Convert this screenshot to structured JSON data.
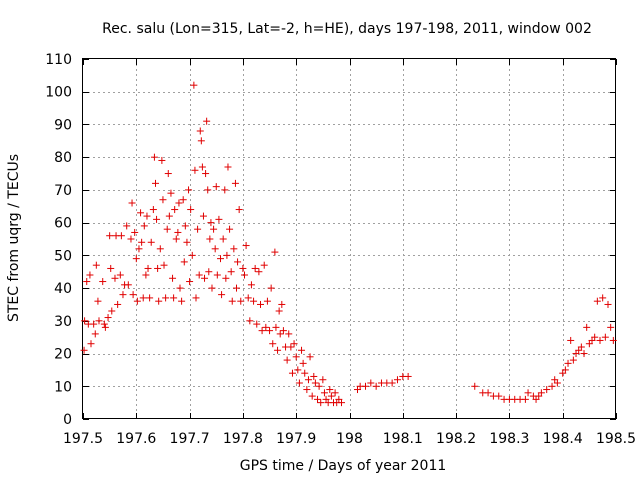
{
  "chart_data": {
    "type": "scatter",
    "title": "Rec. salu (Lon=315, Lat=-2, h=HE), days 197-198, 2011, window 002",
    "xlabel": "GPS time / Days of year 2011",
    "ylabel": "STEC from uqrg / TECUs",
    "xlim": [
      197.5,
      198.5
    ],
    "ylim": [
      0,
      110
    ],
    "xticks": [
      197.5,
      197.6,
      197.7,
      197.8,
      197.9,
      198.0,
      198.1,
      198.2,
      198.3,
      198.4,
      198.5
    ],
    "xtick_labels": [
      "197.5",
      "197.6",
      "197.7",
      "197.8",
      "197.9",
      "198",
      "198.1",
      "198.2",
      "198.3",
      "198.4",
      "198.5"
    ],
    "yticks": [
      0,
      10,
      20,
      30,
      40,
      50,
      60,
      70,
      80,
      90,
      100,
      110
    ],
    "ytick_labels": [
      "0",
      "10",
      "20",
      "30",
      "40",
      "50",
      "60",
      "70",
      "80",
      "90",
      "100",
      "110"
    ],
    "grid": true,
    "marker": "+",
    "marker_color": "#e00000",
    "series": [
      {
        "name": "STEC",
        "points": [
          [
            197.502,
            21
          ],
          [
            197.503,
            30
          ],
          [
            197.507,
            42
          ],
          [
            197.51,
            29
          ],
          [
            197.513,
            44
          ],
          [
            197.515,
            23
          ],
          [
            197.52,
            29
          ],
          [
            197.523,
            26
          ],
          [
            197.525,
            47
          ],
          [
            197.528,
            36
          ],
          [
            197.53,
            30
          ],
          [
            197.537,
            42
          ],
          [
            197.54,
            29
          ],
          [
            197.542,
            28
          ],
          [
            197.547,
            31
          ],
          [
            197.55,
            56
          ],
          [
            197.552,
            46
          ],
          [
            197.554,
            33
          ],
          [
            197.56,
            43
          ],
          [
            197.562,
            56
          ],
          [
            197.565,
            35
          ],
          [
            197.57,
            44
          ],
          [
            197.572,
            56
          ],
          [
            197.575,
            38
          ],
          [
            197.578,
            41
          ],
          [
            197.582,
            59
          ],
          [
            197.585,
            41
          ],
          [
            197.59,
            55
          ],
          [
            197.592,
            66
          ],
          [
            197.594,
            38
          ],
          [
            197.597,
            57
          ],
          [
            197.6,
            49
          ],
          [
            197.602,
            36
          ],
          [
            197.605,
            52
          ],
          [
            197.608,
            63
          ],
          [
            197.61,
            54
          ],
          [
            197.613,
            37
          ],
          [
            197.615,
            59
          ],
          [
            197.618,
            44
          ],
          [
            197.62,
            62
          ],
          [
            197.622,
            46
          ],
          [
            197.625,
            37
          ],
          [
            197.628,
            54
          ],
          [
            197.632,
            64
          ],
          [
            197.634,
            80
          ],
          [
            197.636,
            72
          ],
          [
            197.638,
            61
          ],
          [
            197.64,
            46
          ],
          [
            197.642,
            36
          ],
          [
            197.645,
            52
          ],
          [
            197.648,
            79
          ],
          [
            197.65,
            67
          ],
          [
            197.652,
            47
          ],
          [
            197.655,
            37
          ],
          [
            197.658,
            58
          ],
          [
            197.66,
            75
          ],
          [
            197.662,
            62
          ],
          [
            197.665,
            69
          ],
          [
            197.668,
            43
          ],
          [
            197.67,
            37
          ],
          [
            197.672,
            64
          ],
          [
            197.675,
            55
          ],
          [
            197.678,
            57
          ],
          [
            197.68,
            66
          ],
          [
            197.682,
            40
          ],
          [
            197.685,
            36
          ],
          [
            197.688,
            67
          ],
          [
            197.69,
            48
          ],
          [
            197.692,
            59
          ],
          [
            197.695,
            54
          ],
          [
            197.698,
            70
          ],
          [
            197.7,
            42
          ],
          [
            197.702,
            64
          ],
          [
            197.705,
            50
          ],
          [
            197.708,
            102
          ],
          [
            197.71,
            76
          ],
          [
            197.712,
            37
          ],
          [
            197.715,
            58
          ],
          [
            197.718,
            44
          ],
          [
            197.72,
            88
          ],
          [
            197.722,
            85
          ],
          [
            197.724,
            77
          ],
          [
            197.726,
            62
          ],
          [
            197.728,
            43
          ],
          [
            197.73,
            75
          ],
          [
            197.732,
            91
          ],
          [
            197.734,
            70
          ],
          [
            197.736,
            45
          ],
          [
            197.738,
            55
          ],
          [
            197.74,
            60
          ],
          [
            197.742,
            40
          ],
          [
            197.745,
            58
          ],
          [
            197.748,
            52
          ],
          [
            197.75,
            71
          ],
          [
            197.752,
            44
          ],
          [
            197.755,
            61
          ],
          [
            197.758,
            49
          ],
          [
            197.76,
            38
          ],
          [
            197.763,
            55
          ],
          [
            197.766,
            70
          ],
          [
            197.768,
            43
          ],
          [
            197.77,
            50
          ],
          [
            197.772,
            77
          ],
          [
            197.775,
            58
          ],
          [
            197.778,
            45
          ],
          [
            197.78,
            36
          ],
          [
            197.783,
            52
          ],
          [
            197.786,
            72
          ],
          [
            197.788,
            40
          ],
          [
            197.79,
            48
          ],
          [
            197.793,
            64
          ],
          [
            197.796,
            36
          ],
          [
            197.8,
            46
          ],
          [
            197.803,
            44
          ],
          [
            197.806,
            53
          ],
          [
            197.81,
            37
          ],
          [
            197.813,
            30
          ],
          [
            197.816,
            41
          ],
          [
            197.82,
            36
          ],
          [
            197.823,
            46
          ],
          [
            197.826,
            29
          ],
          [
            197.83,
            45
          ],
          [
            197.833,
            35
          ],
          [
            197.836,
            27
          ],
          [
            197.84,
            47
          ],
          [
            197.843,
            28
          ],
          [
            197.846,
            36
          ],
          [
            197.85,
            27
          ],
          [
            197.853,
            40
          ],
          [
            197.856,
            23
          ],
          [
            197.86,
            51
          ],
          [
            197.862,
            28
          ],
          [
            197.865,
            21
          ],
          [
            197.868,
            33
          ],
          [
            197.87,
            26
          ],
          [
            197.873,
            35
          ],
          [
            197.876,
            27
          ],
          [
            197.88,
            22
          ],
          [
            197.883,
            18
          ],
          [
            197.886,
            26
          ],
          [
            197.89,
            22
          ],
          [
            197.893,
            14
          ],
          [
            197.896,
            23
          ],
          [
            197.9,
            19
          ],
          [
            197.903,
            15
          ],
          [
            197.906,
            11
          ],
          [
            197.91,
            21
          ],
          [
            197.913,
            17
          ],
          [
            197.916,
            14
          ],
          [
            197.92,
            9
          ],
          [
            197.923,
            12
          ],
          [
            197.926,
            19
          ],
          [
            197.93,
            7
          ],
          [
            197.933,
            13
          ],
          [
            197.936,
            11
          ],
          [
            197.94,
            6
          ],
          [
            197.943,
            10
          ],
          [
            197.946,
            5
          ],
          [
            197.95,
            12
          ],
          [
            197.953,
            8
          ],
          [
            197.956,
            6
          ],
          [
            197.96,
            5
          ],
          [
            197.963,
            9
          ],
          [
            197.966,
            7
          ],
          [
            197.97,
            5
          ],
          [
            197.973,
            8
          ],
          [
            197.976,
            5
          ],
          [
            197.98,
            6
          ],
          [
            197.985,
            5
          ],
          [
            198.015,
            9
          ],
          [
            198.02,
            10
          ],
          [
            198.03,
            10
          ],
          [
            198.04,
            11
          ],
          [
            198.05,
            10
          ],
          [
            198.06,
            11
          ],
          [
            198.07,
            11
          ],
          [
            198.08,
            11
          ],
          [
            198.09,
            12
          ],
          [
            198.1,
            13
          ],
          [
            198.11,
            13
          ],
          [
            198.235,
            10
          ],
          [
            198.25,
            8
          ],
          [
            198.26,
            8
          ],
          [
            198.27,
            7
          ],
          [
            198.28,
            7
          ],
          [
            198.29,
            6
          ],
          [
            198.3,
            6
          ],
          [
            198.31,
            6
          ],
          [
            198.32,
            6
          ],
          [
            198.33,
            6
          ],
          [
            198.335,
            8
          ],
          [
            198.345,
            7
          ],
          [
            198.35,
            6
          ],
          [
            198.355,
            7
          ],
          [
            198.36,
            8
          ],
          [
            198.37,
            9
          ],
          [
            198.38,
            10
          ],
          [
            198.385,
            12
          ],
          [
            198.39,
            11
          ],
          [
            198.4,
            14
          ],
          [
            198.405,
            15
          ],
          [
            198.41,
            17
          ],
          [
            198.415,
            24
          ],
          [
            198.42,
            18
          ],
          [
            198.425,
            20
          ],
          [
            198.43,
            21
          ],
          [
            198.435,
            22
          ],
          [
            198.44,
            20
          ],
          [
            198.445,
            28
          ],
          [
            198.45,
            23
          ],
          [
            198.455,
            24
          ],
          [
            198.46,
            25
          ],
          [
            198.465,
            36
          ],
          [
            198.47,
            24
          ],
          [
            198.475,
            37
          ],
          [
            198.48,
            25
          ],
          [
            198.485,
            35
          ],
          [
            198.49,
            28
          ],
          [
            198.495,
            24
          ]
        ]
      }
    ]
  }
}
